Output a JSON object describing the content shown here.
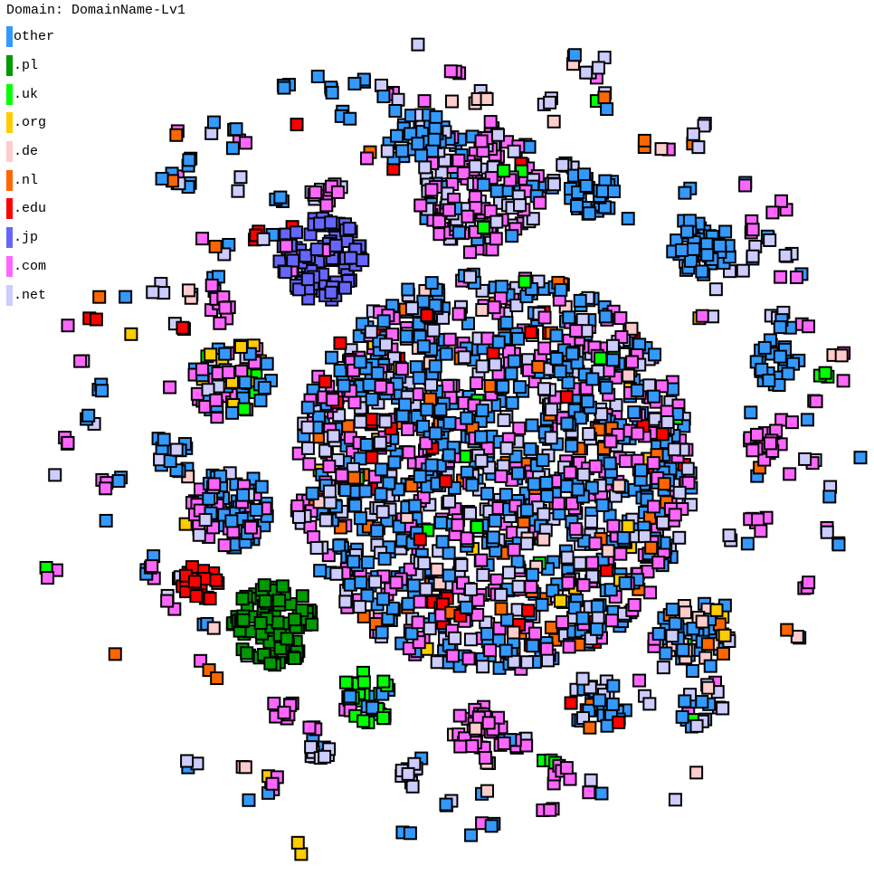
{
  "legend": {
    "title": "Domain: DomainName-Lv1",
    "items": [
      {
        "label": "other",
        "color": "#3399ff"
      },
      {
        "label": ".pl",
        "color": "#009900"
      },
      {
        "label": ".uk",
        "color": "#00ff00"
      },
      {
        "label": ".org",
        "color": "#ffcc00"
      },
      {
        "label": ".de",
        "color": "#ffcccc"
      },
      {
        "label": ".nl",
        "color": "#ff6600"
      },
      {
        "label": ".edu",
        "color": "#ff0000"
      },
      {
        "label": ".jp",
        "color": "#6666ff"
      },
      {
        "label": ".com",
        "color": "#ff66ff"
      },
      {
        "label": ".net",
        "color": "#ccccff"
      }
    ]
  },
  "node_style": {
    "border": "#000000",
    "shape": "square"
  }
}
